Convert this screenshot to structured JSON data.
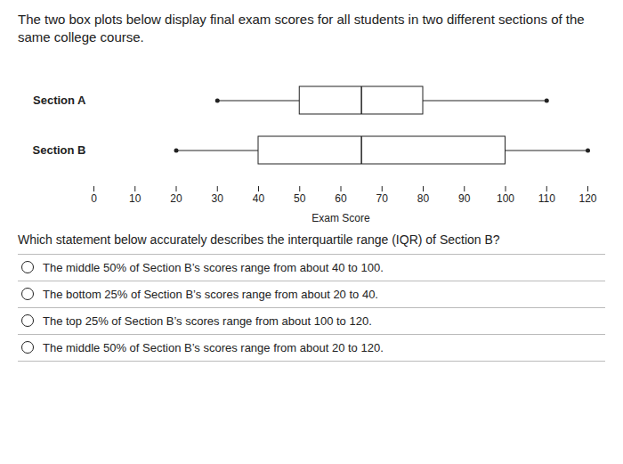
{
  "chart_data": {
    "type": "box",
    "title": "The two box plots below display final exam scores for all students in two different sections of the same college course.",
    "categories": [
      "Section A",
      "Section B"
    ],
    "min": [
      30,
      20
    ],
    "q1": [
      50,
      40
    ],
    "median": [
      65,
      65
    ],
    "q3": [
      80,
      100
    ],
    "max": [
      110,
      120
    ],
    "orientation": "horizontal",
    "xlim": [
      0,
      120
    ],
    "xticks": [
      0,
      10,
      20,
      30,
      40,
      50,
      60,
      70,
      80,
      90,
      100,
      110,
      120
    ],
    "xlabel": "Exam Score",
    "grid": false,
    "annotations": [
      "Which statement below accurately describes the interquartile range (IQR) of Section B?",
      "The middle 50% of Section B’s scores range from about 40 to 100.",
      "The bottom 25% of Section B’s scores range from about 20 to 40.",
      "The top 25% of Section B’s scores range from about 100 to 120.",
      "The middle 50% of Section B’s scores range from about 20 to 120."
    ]
  }
}
